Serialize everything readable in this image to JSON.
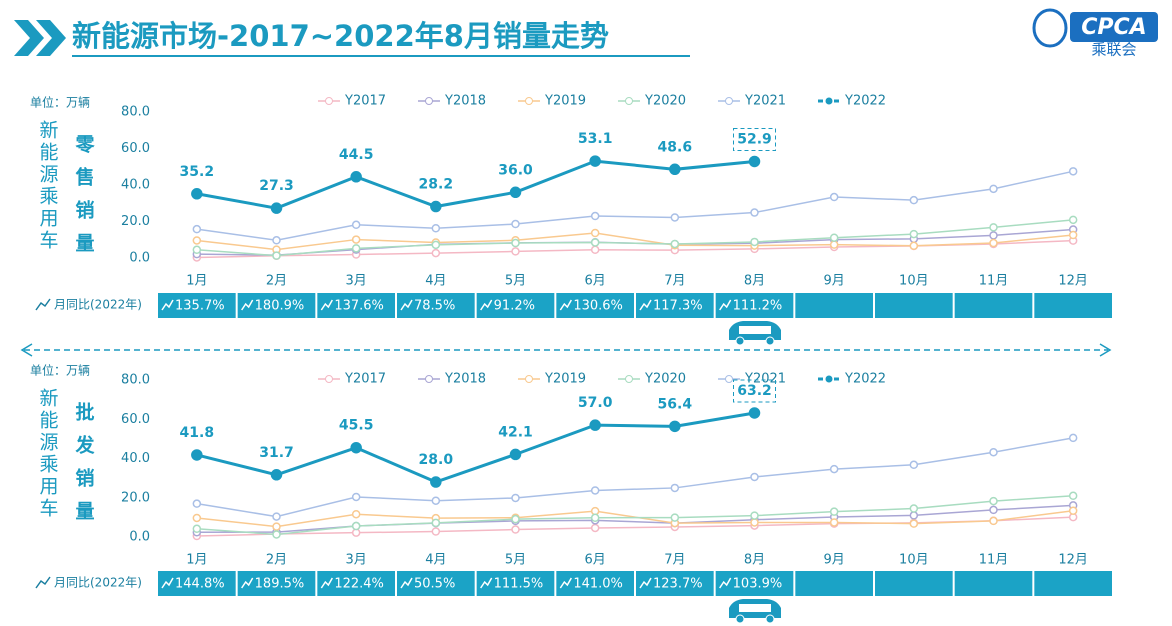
{
  "title": "新能源市场-2017~2022年8月销量走势",
  "logo": {
    "text": "CPCA",
    "subtext": "乘联会"
  },
  "chart_data": [
    {
      "type": "line",
      "unit": "单位：万辆",
      "side_label": "新能源乘用车",
      "metric": "零售销量",
      "categories": [
        "1月",
        "2月",
        "3月",
        "4月",
        "5月",
        "6月",
        "7月",
        "8月",
        "9月",
        "10月",
        "11月",
        "12月"
      ],
      "ylim": [
        0,
        80
      ],
      "yticks": [
        {
          "value": 0,
          "label": "0.0"
        },
        {
          "value": 20,
          "label": "20.0"
        },
        {
          "value": 40,
          "label": "40.0"
        },
        {
          "value": 60,
          "label": "60.0"
        },
        {
          "value": 80,
          "label": "80.0"
        }
      ],
      "grid": false,
      "series": [
        {
          "name": "Y2017",
          "color": "#f4b8c4",
          "values": [
            0.3,
            1.2,
            1.9,
            2.7,
            3.6,
            4.5,
            4.3,
            5.0,
            6.0,
            6.6,
            7.7,
            9.5
          ]
        },
        {
          "name": "Y2018",
          "color": "#a9a6d4",
          "values": [
            2.1,
            1.6,
            4.6,
            7.5,
            8.3,
            8.6,
            7.6,
            8.1,
            10.1,
            10.5,
            12.4,
            15.6
          ]
        },
        {
          "name": "Y2019",
          "color": "#f9c98f",
          "values": [
            9.6,
            4.6,
            10.1,
            8.5,
            9.7,
            13.7,
            7.0,
            6.8,
            7.3,
            6.7,
            8.2,
            12.6
          ]
        },
        {
          "name": "Y2020",
          "color": "#a8dcc0",
          "values": [
            4.5,
            1.3,
            5.3,
            7.2,
            8.2,
            8.5,
            7.7,
            8.8,
            11.1,
            13.1,
            16.8,
            20.9
          ]
        },
        {
          "name": "Y2021",
          "color": "#a9bfe6",
          "values": [
            15.8,
            9.7,
            18.2,
            16.3,
            18.6,
            23.0,
            22.2,
            24.9,
            33.4,
            31.7,
            37.9,
            47.5
          ]
        },
        {
          "name": "Y2022",
          "color": "#1b9ac0",
          "values": [
            35.2,
            27.3,
            44.5,
            28.2,
            36.0,
            53.1,
            48.6,
            52.9,
            null,
            null,
            null,
            null
          ],
          "value_labels": [
            "35.2",
            "27.3",
            "44.5",
            "28.2",
            "36.0",
            "53.1",
            "48.6",
            "52.9",
            null,
            null,
            null,
            null
          ]
        }
      ],
      "yoy": {
        "label": "月同比(2022年)",
        "values": [
          "135.7%",
          "180.9%",
          "137.6%",
          "78.5%",
          "91.2%",
          "130.6%",
          "117.3%",
          "111.2%"
        ]
      }
    },
    {
      "type": "line",
      "unit": "单位：万辆",
      "side_label": "新能源乘用车",
      "metric": "批发销量",
      "categories": [
        "1月",
        "2月",
        "3月",
        "4月",
        "5月",
        "6月",
        "7月",
        "8月",
        "9月",
        "10月",
        "11月",
        "12月"
      ],
      "ylim": [
        0,
        80
      ],
      "yticks": [
        {
          "value": 0,
          "label": "0.0"
        },
        {
          "value": 20,
          "label": "20.0"
        },
        {
          "value": 40,
          "label": "40.0"
        },
        {
          "value": 60,
          "label": "60.0"
        },
        {
          "value": 80,
          "label": "80.0"
        }
      ],
      "grid": false,
      "series": [
        {
          "name": "Y2017",
          "color": "#f4b8c4",
          "values": [
            0.5,
            1.5,
            2.2,
            2.8,
            3.8,
            4.6,
            5.1,
            5.8,
            6.8,
            7.2,
            8.3,
            10.1
          ]
        },
        {
          "name": "Y2018",
          "color": "#a9a6d4",
          "values": [
            2.4,
            2.5,
            5.6,
            7.1,
            8.2,
            8.5,
            7.1,
            8.8,
            10.2,
            11.0,
            13.8,
            16.1
          ]
        },
        {
          "name": "Y2019",
          "color": "#f9c98f",
          "values": [
            9.7,
            5.3,
            11.6,
            9.6,
            9.8,
            13.2,
            7.1,
            7.4,
            7.4,
            6.8,
            8.2,
            13.4
          ]
        },
        {
          "name": "Y2020",
          "color": "#a8dcc0",
          "values": [
            4.2,
            1.3,
            5.6,
            7.2,
            9.1,
            9.8,
            9.9,
            10.9,
            12.9,
            14.5,
            18.3,
            21.0
          ]
        },
        {
          "name": "Y2021",
          "color": "#a9bfe6",
          "values": [
            17.0,
            10.4,
            20.4,
            18.5,
            19.9,
            23.7,
            25.0,
            30.6,
            34.6,
            36.8,
            43.2,
            50.5
          ]
        },
        {
          "name": "Y2022",
          "color": "#1b9ac0",
          "values": [
            41.8,
            31.7,
            45.5,
            28.0,
            42.1,
            57.0,
            56.4,
            63.2,
            null,
            null,
            null,
            null
          ],
          "value_labels": [
            "41.8",
            "31.7",
            "45.5",
            "28.0",
            "42.1",
            "57.0",
            "56.4",
            "63.2",
            null,
            null,
            null,
            null
          ]
        }
      ],
      "yoy": {
        "label": "月同比(2022年)",
        "values": [
          "144.8%",
          "189.5%",
          "122.4%",
          "50.5%",
          "111.5%",
          "141.0%",
          "123.7%",
          "103.9%"
        ]
      }
    }
  ]
}
